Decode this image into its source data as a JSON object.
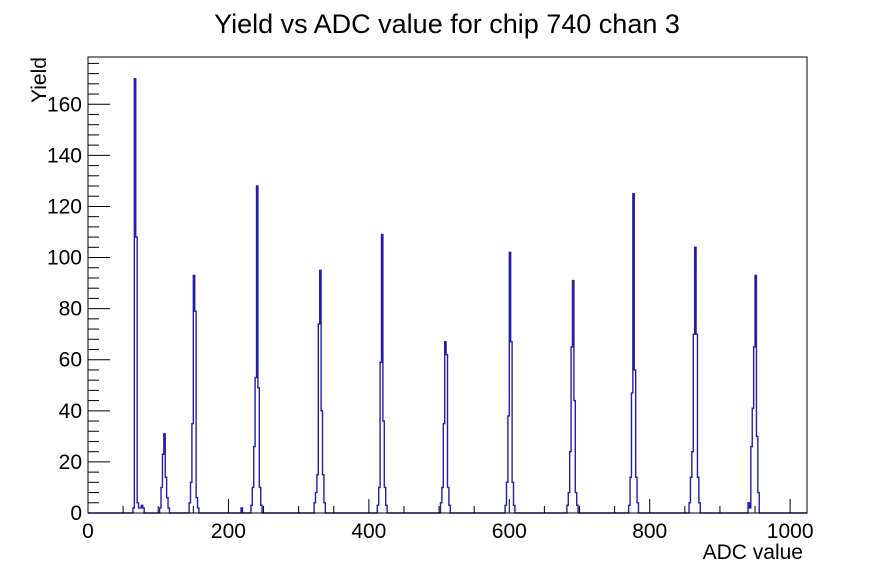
{
  "chart_data": {
    "type": "histogram-line",
    "title": "Yield vs ADC value for chip 740 chan 3",
    "xlabel": "ADC value",
    "ylabel": "Yield",
    "xlim": [
      0,
      1024
    ],
    "ylim": [
      0,
      178.5
    ],
    "grid": false,
    "legend": false,
    "line_color": "#1f1fad",
    "axis_color": "#000000",
    "background_color": "#ffffff",
    "x_major_ticks": [
      0,
      200,
      400,
      600,
      800,
      1000
    ],
    "x_tick_labels": [
      "0",
      "200",
      "400",
      "600",
      "800",
      "1000"
    ],
    "x_minor_step": 50,
    "x_major_every": 200,
    "y_major_ticks": [
      0,
      20,
      40,
      60,
      80,
      100,
      120,
      140,
      160
    ],
    "y_tick_labels": [
      "0",
      "20",
      "40",
      "60",
      "80",
      "100",
      "120",
      "140",
      "160"
    ],
    "y_minor_step": 4,
    "y_major_every": 20,
    "bin_width": 2,
    "peaks": [
      {
        "start": 64,
        "values": [
          2,
          170,
          108,
          4,
          2,
          2,
          3,
          2
        ]
      },
      {
        "start": 102,
        "values": [
          2,
          10,
          23,
          31,
          14,
          6,
          2
        ]
      },
      {
        "start": 144,
        "values": [
          4,
          12,
          35,
          93,
          79,
          6,
          2
        ]
      },
      {
        "start": 218,
        "values": [
          2
        ]
      },
      {
        "start": 232,
        "values": [
          3,
          10,
          26,
          53,
          128,
          49,
          10,
          3
        ]
      },
      {
        "start": 322,
        "values": [
          4,
          8,
          15,
          74,
          95,
          40,
          15,
          4
        ]
      },
      {
        "start": 412,
        "values": [
          3,
          10,
          59,
          109,
          36,
          10,
          3
        ]
      },
      {
        "start": 502,
        "values": [
          4,
          10,
          35,
          67,
          62,
          10,
          3
        ]
      },
      {
        "start": 594,
        "values": [
          3,
          12,
          38,
          102,
          67,
          12,
          3
        ]
      },
      {
        "start": 682,
        "values": [
          3,
          8,
          24,
          65,
          91,
          44,
          8,
          3
        ]
      },
      {
        "start": 770,
        "values": [
          3,
          14,
          47,
          125,
          56,
          14,
          4
        ]
      },
      {
        "start": 856,
        "values": [
          4,
          14,
          24,
          70,
          104,
          70,
          14,
          4
        ]
      },
      {
        "start": 938,
        "values": [
          0,
          4,
          2,
          26,
          41,
          65,
          93,
          30,
          8
        ]
      }
    ]
  }
}
